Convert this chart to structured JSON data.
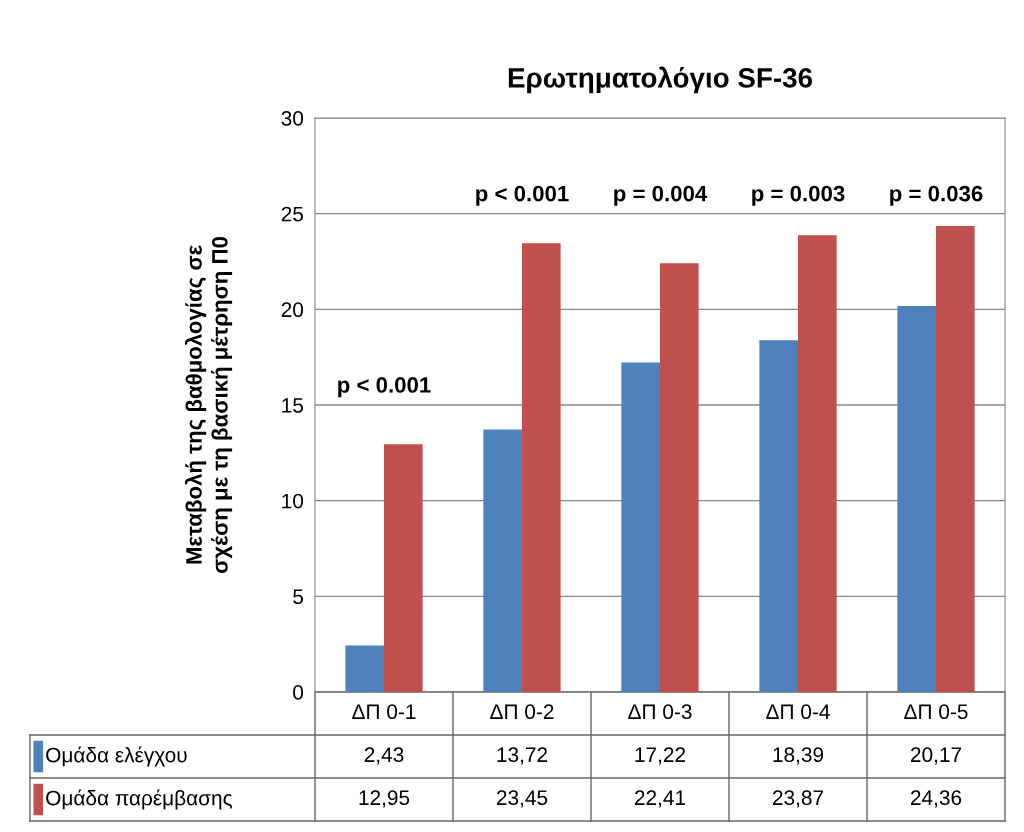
{
  "chart_data": {
    "type": "bar",
    "title": "Ερωτηματολόγιο SF-36",
    "ylabel": "Μεταβολή της βαθμολογίας σε\nσχέση με τη βασική μέτρηση Π0",
    "categories": [
      "ΔΠ 0-1",
      "ΔΠ 0-2",
      "ΔΠ 0-3",
      "ΔΠ 0-4",
      "ΔΠ 0-5"
    ],
    "series": [
      {
        "name": "Ομάδα ελέγχου",
        "color": "#4f81bd",
        "values": [
          2.43,
          13.72,
          17.22,
          18.39,
          20.17
        ],
        "value_labels": [
          "2,43",
          "13,72",
          "17,22",
          "18,39",
          "20,17"
        ]
      },
      {
        "name": "Ομάδα παρέμβασης",
        "color": "#c0504d",
        "values": [
          12.95,
          23.45,
          22.41,
          23.87,
          24.36
        ],
        "value_labels": [
          "12,95",
          "23,45",
          "22,41",
          "23,87",
          "24,36"
        ]
      }
    ],
    "ylim": [
      0,
      30
    ],
    "yticks": [
      0,
      5,
      10,
      15,
      20,
      25,
      30
    ],
    "grid": "y",
    "legend": "bottom",
    "annotations": [
      "p < 0.001",
      "p < 0.001",
      "p = 0.004",
      "p = 0.003",
      "p = 0.036"
    ]
  }
}
